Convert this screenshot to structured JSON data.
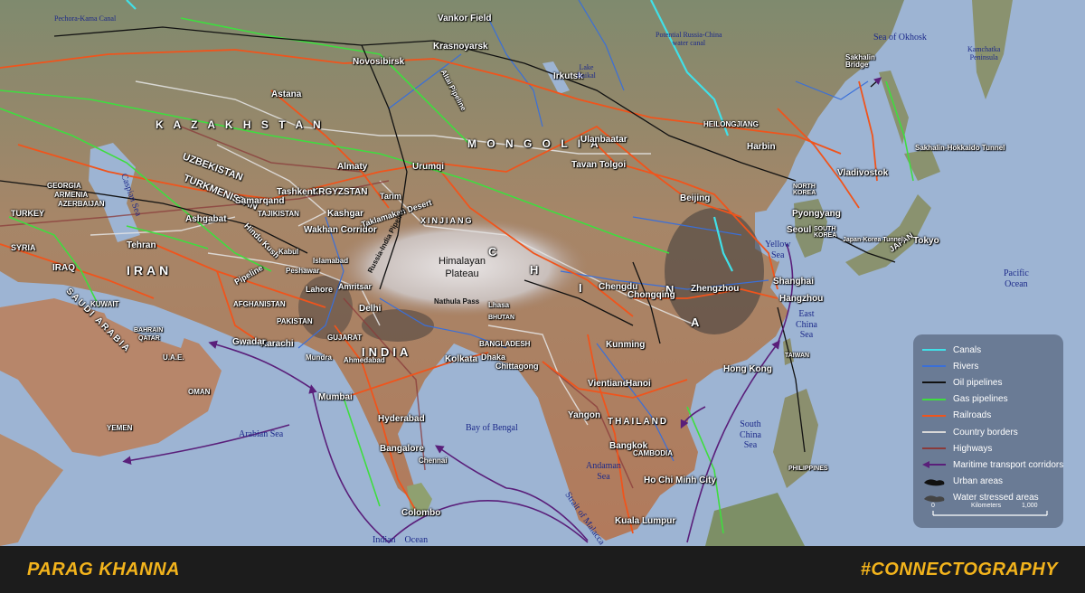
{
  "map": {
    "countries": {
      "kazakhstan": "K A Z A K H S T A N",
      "mongolia": "M O N G O L I A",
      "uzbekistan": "UZBEKISTAN",
      "turkmenistan": "TURKMENISTAN",
      "krgyzstan": "KRGYZSTAN",
      "tajikistan": "TAJIKISTAN",
      "afghanistan": "AFGHANISTAN",
      "pakistan": "PAKISTAN",
      "iran": "IRAN",
      "iraq": "IRAQ",
      "syria": "SYRIA",
      "turkey": "TURKEY",
      "georgia": "GEORGIA",
      "armenia": "ARMENIA",
      "azerbaijan": "AZERBAIJAN",
      "saudi_arabia": "SAUDI ARABIA",
      "kuwait": "KUWAIT",
      "bahrain": "BAHRAIN",
      "qatar": "QATAR",
      "uae": "U.A.E.",
      "oman": "OMAN",
      "yemen": "YEMEN",
      "india": "INDIA",
      "china_c": "C",
      "china_h": "H",
      "china_i": "I",
      "china_n": "N",
      "china_a": "A",
      "bhutan": "BHUTAN",
      "bangladesh": "BANGLADESH",
      "thailand": "THAILAND",
      "cambodia": "CAMBODIA",
      "north_korea": "NORTH KOREA",
      "south_korea": "SOUTH KOREA",
      "japan": "JAPAN",
      "taiwan": "TAIWAN",
      "philippines": "PHILIPPINES",
      "gujarat": "GUJARAT",
      "xinjiang": "XINJIANG",
      "heilongjiang": "HEILONGJIANG"
    },
    "cities": {
      "vankor": "Vankor Field",
      "krasnoyarsk": "Krasnoyarsk",
      "novosibirsk": "Novosibirsk",
      "irkutsk": "Irkutsk",
      "astana": "Astana",
      "almaty": "Almaty",
      "urumqi": "Urumqi",
      "ulaanbaatar": "Ulanbaatar",
      "tavan_tolgoi": "Tavan Tolgoi",
      "harbin": "Harbin",
      "vladivostok": "Vladivostok",
      "beijing": "Beijing",
      "pyongyang": "Pyongyang",
      "seoul": "Seoul",
      "tokyo": "Tokyo",
      "tashkent": "Tashkent",
      "samarqand": "Samarqand",
      "ashgabat": "Ashgabat",
      "kashgar": "Kashgar",
      "tehran": "Tehran",
      "wakhan": "Wakhan Corridor",
      "kabul": "Kabul",
      "islamabad": "Islamabad",
      "peshawar": "Peshawar",
      "lahore": "Lahore",
      "amritsar": "Amritsar",
      "delhi": "Delhi",
      "karachi": "Karachi",
      "gwadar": "Gwadar",
      "mundra": "Mundra",
      "ahmedabad": "Ahmedabad",
      "mumbai": "Mumbai",
      "hyderabad": "Hyderabad",
      "bangalore": "Bangalore",
      "chennai": "Chennai",
      "colombo": "Colombo",
      "kolkata": "Kolkata",
      "dhaka": "Dhaka",
      "chittagong": "Chittagong",
      "lhasa": "Lhasa",
      "nathula": "Nathula Pass",
      "chengdu": "Chengdu",
      "chongqing": "Chongqing",
      "zhengzhou": "Zhengzhou",
      "shanghai": "Shanghai",
      "hangzhou": "Hangzhou",
      "kunming": "Kunming",
      "vientiane": "Vientiane",
      "hanoi": "Hanoi",
      "yangon": "Yangon",
      "bangkok": "Bangkok",
      "hcmc": "Ho Chi Minh City",
      "hong_kong": "Hong Kong",
      "kuala_lumpur": "Kuala Lumpur"
    },
    "features": {
      "himalayan_plateau": "Himalayan\nPlateau",
      "taklamakan": "Taklamakan Desert",
      "tarim": "Tarim",
      "hindu_kush": "Hindu Kush",
      "pipeline": "Pipeline",
      "altai": "Altai Pipeline",
      "russia_india_pipeline": "Russia-India Pipeline",
      "sakhalin_bridge": "Sakhalin\nBridge",
      "sakhalin_tunnel": "Sakhalin-Hokkaido Tunnel",
      "japan_korea_tunnel": "Japan-Korea Tunnel",
      "pechora_canal": "Pechora-Kama Canal",
      "potential_canal": "Potential Russia-China\nwater canal",
      "lake_baikal": "Lake\nBaikal",
      "kamchatka": "Kamchatka\nPeninsula"
    },
    "seas": {
      "okhotsk": "Sea of Okhosk",
      "caspian": "Caspian Sea",
      "arabian": "Arabian Sea",
      "bengal": "Bay of Bengal",
      "andaman": "Andaman\nSea",
      "south_china": "South\nChina\nSea",
      "east_china": "East\nChina\nSea",
      "yellow": "Yellow\nSea",
      "pacific": "Pacific\nOcean",
      "indian": "Indian    Ocean",
      "malacca": "Strait of Malacca"
    }
  },
  "legend": {
    "items": [
      {
        "label": "Canals",
        "color": "#40e0e8",
        "kind": "line"
      },
      {
        "label": "Rivers",
        "color": "#3a6fd8",
        "kind": "line"
      },
      {
        "label": "Oil pipelines",
        "color": "#111111",
        "kind": "line"
      },
      {
        "label": "Gas pipelines",
        "color": "#3fdd3f",
        "kind": "line"
      },
      {
        "label": "Railroads",
        "color": "#f0541c",
        "kind": "line"
      },
      {
        "label": "Country borders",
        "color": "#d8d8d8",
        "kind": "line"
      },
      {
        "label": "Highways",
        "color": "#8a3a3a",
        "kind": "line"
      },
      {
        "label": "Maritime transport corridors",
        "color": "#5a1f7a",
        "kind": "arrow"
      },
      {
        "label": "Urban areas",
        "color": "#111111",
        "kind": "blob"
      },
      {
        "label": "Water stressed areas",
        "color": "#444444",
        "kind": "blob"
      }
    ],
    "scale": {
      "start": "0",
      "unit": "Kilometers",
      "end": "1,000"
    }
  },
  "footer": {
    "author": "PARAG KHANNA",
    "hashtag": "#CONNECTOGRAPHY"
  }
}
